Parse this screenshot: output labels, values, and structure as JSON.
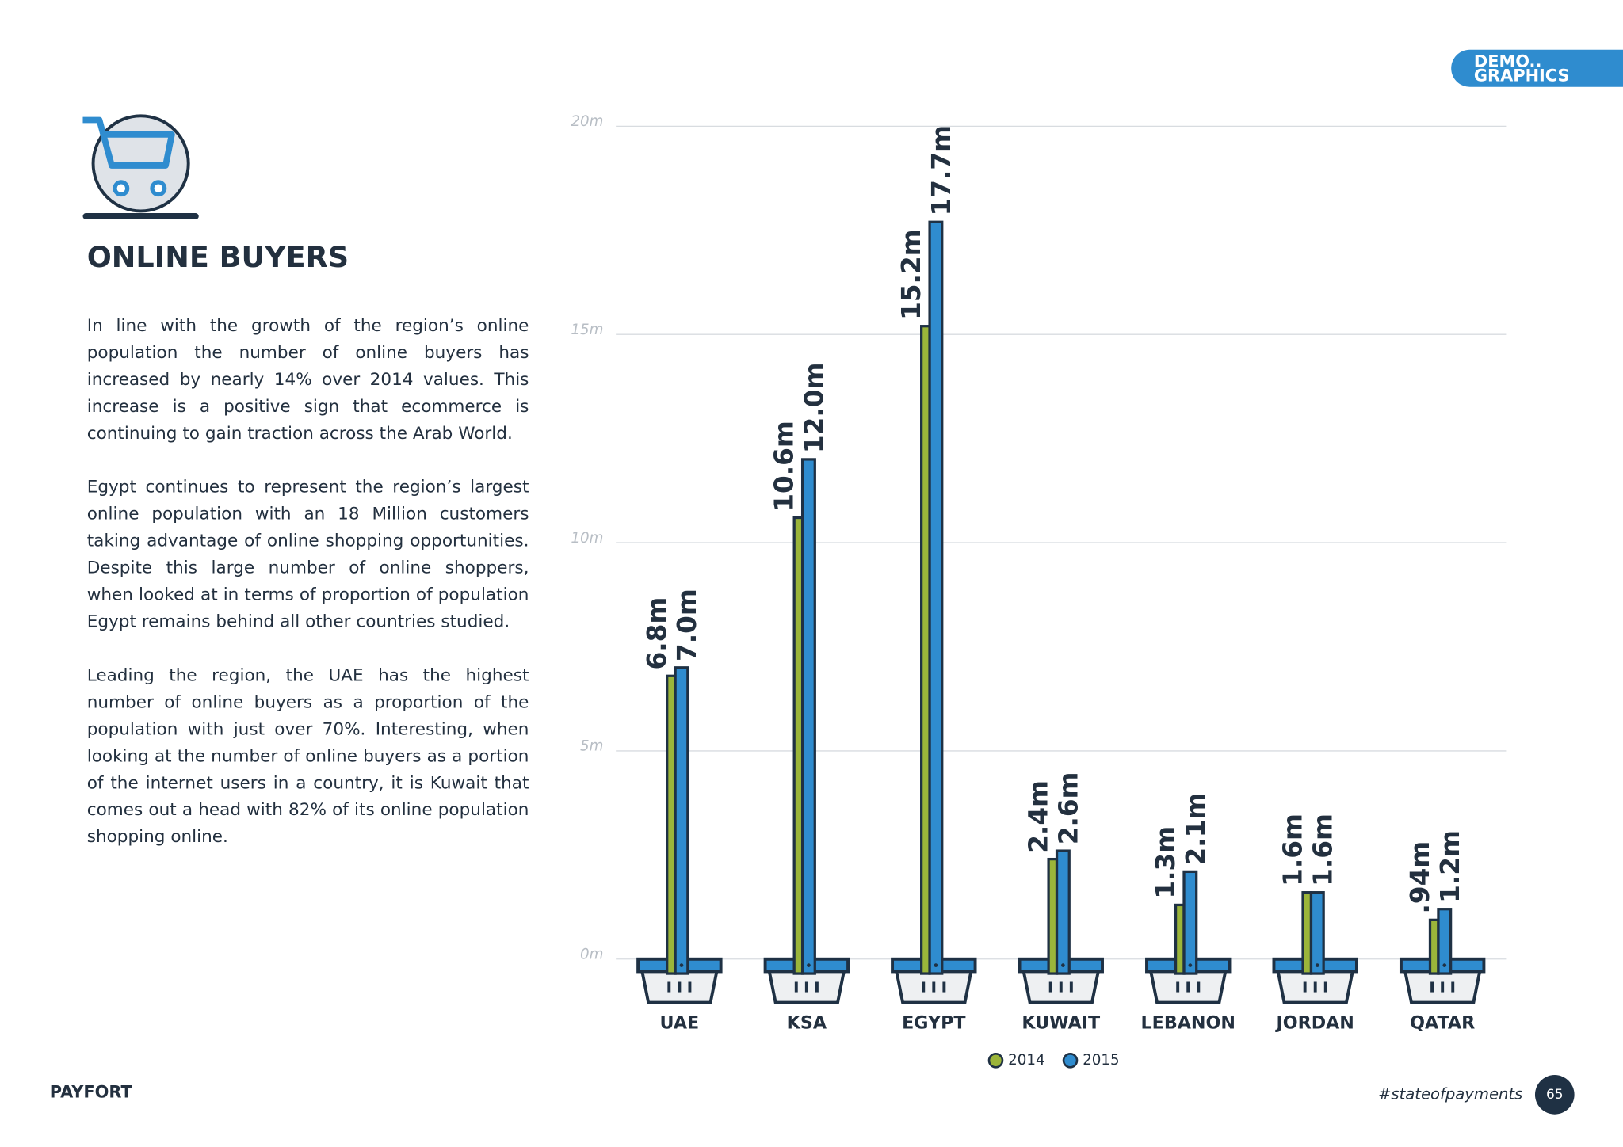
{
  "page": {
    "tab": [
      "DEMO..",
      "GRAPHICS"
    ],
    "heading": "ONLINE BUYERS",
    "paragraphs": [
      "In line with the growth of the region’s online population the number of online buyers has increased by nearly 14% over 2014 values. This increase is a positive sign that ecommerce is continuing to gain traction across the Arab World.",
      "Egypt continues to represent the region’s largest online population with an 18 Million customers taking advantage of online shopping opportunities. Despite this large number of online shoppers, when looked at in terms of proportion of population Egypt remains behind all other countries studied.",
      "Leading the region, the UAE has the highest number of online buyers as a proportion of the population with just over 70%. Interesting, when looking at the number of online buyers as a portion of the internet users in a country, it is Kuwait that comes out a head with 82% of its online population shopping online."
    ],
    "logo": "PAYFORT",
    "hashtag": "#stateofpayments",
    "page_number": "65"
  },
  "chart_data": {
    "type": "bar",
    "categories": [
      "UAE",
      "KSA",
      "EGYPT",
      "KUWAIT",
      "LEBANON",
      "JORDAN",
      "QATAR"
    ],
    "series": [
      {
        "name": "2014",
        "color": "#9bb53a",
        "values": [
          6.8,
          10.6,
          15.2,
          2.4,
          1.3,
          1.6,
          0.94
        ],
        "value_labels": [
          "6.8m",
          "10.6m",
          "15.2m",
          "2.4m",
          "1.3m",
          "1.6m",
          ".94m"
        ]
      },
      {
        "name": "2015",
        "color": "#2f8ccf",
        "values": [
          7.0,
          12.0,
          17.7,
          2.6,
          2.1,
          1.6,
          1.2
        ],
        "value_labels": [
          "7.0m",
          "12.0m",
          "17.7m",
          "2.6m",
          "2.1m",
          "1.6m",
          "1.2m"
        ]
      }
    ],
    "ylim": [
      0,
      20
    ],
    "yticks": [
      {
        "value": 0,
        "label": "0m"
      },
      {
        "value": 5,
        "label": "5m"
      },
      {
        "value": 10,
        "label": "10m"
      },
      {
        "value": 15,
        "label": "15m"
      },
      {
        "value": 20,
        "label": "20m"
      }
    ],
    "grid": true,
    "legend": "bottom"
  }
}
